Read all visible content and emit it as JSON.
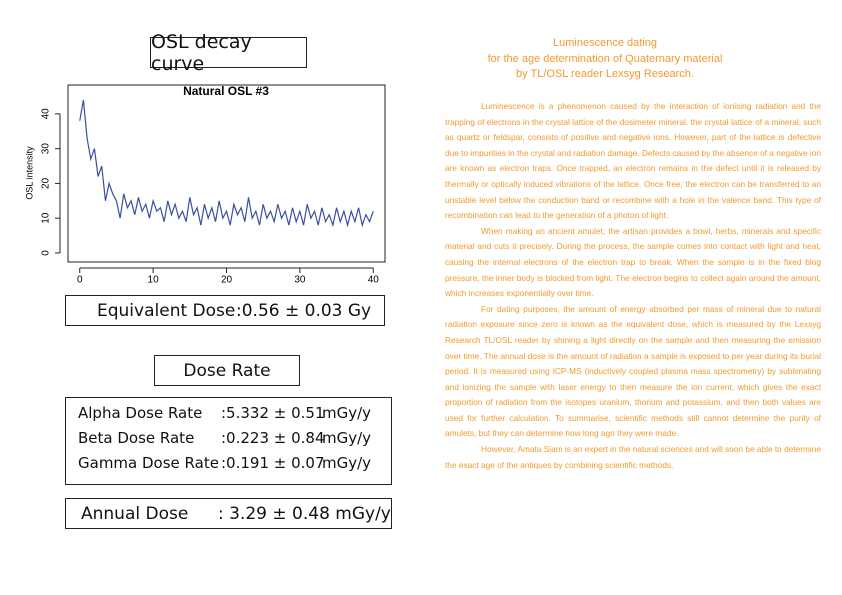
{
  "header": {
    "box_title": "OSL decay curve"
  },
  "chart_data": {
    "type": "line",
    "title": "Natural OSL #3",
    "y_label": "OSL intensity",
    "color": "#3a4fa0",
    "x": [
      0,
      0.5,
      1,
      1.5,
      2,
      2.5,
      3,
      3.5,
      4,
      4.5,
      5,
      5.5,
      6,
      6.5,
      7,
      7.5,
      8,
      8.5,
      9,
      9.5,
      10,
      10.5,
      11,
      11.5,
      12,
      12.5,
      13,
      13.5,
      14,
      14.5,
      15,
      15.5,
      16,
      16.5,
      17,
      17.5,
      18,
      18.5,
      19,
      19.5,
      20,
      20.5,
      21,
      21.5,
      22,
      22.5,
      23,
      23.5,
      24,
      24.5,
      25,
      25.5,
      26,
      26.5,
      27,
      27.5,
      28,
      28.5,
      29,
      29.5,
      30,
      30.5,
      31,
      31.5,
      32,
      32.5,
      33,
      33.5,
      34,
      34.5,
      35,
      35.5,
      36,
      36.5,
      37,
      37.5,
      38,
      38.5,
      39,
      39.5,
      40
    ],
    "values": [
      38,
      44,
      33,
      27,
      30,
      22,
      25,
      15,
      20,
      17,
      15,
      10,
      17,
      13,
      15,
      11,
      16,
      12,
      14,
      10,
      15,
      12,
      13,
      9,
      15,
      11,
      14,
      10,
      12,
      9,
      16,
      11,
      13,
      8,
      14,
      10,
      13,
      9,
      15,
      10,
      12,
      8,
      14,
      11,
      13,
      9,
      16,
      10,
      12,
      8,
      14,
      10,
      12,
      9,
      14,
      10,
      12,
      8,
      13,
      9,
      12,
      8,
      14,
      10,
      12,
      8,
      13,
      9,
      11,
      8,
      13,
      9,
      12,
      8,
      12,
      9,
      13,
      8,
      11,
      9,
      12
    ],
    "xlim": [
      -1.6,
      41.6
    ],
    "ylim": [
      -2.6,
      48.3
    ],
    "xticks": [
      0,
      10,
      20,
      30,
      40
    ],
    "yticks": [
      0,
      10,
      20,
      30,
      40
    ]
  },
  "equivalent_dose": {
    "label": "Equivalent Dose",
    "value": ":0.56 ± 0.03 Gy"
  },
  "dose_rate": {
    "title": "Dose Rate",
    "rows": [
      {
        "label": "Alpha Dose Rate",
        "value": ":5.332 ± 0.51",
        "unit": "mGy/y"
      },
      {
        "label": "Beta Dose Rate",
        "value": ":0.223 ± 0.84",
        "unit": "mGy/y"
      },
      {
        "label": "Gamma Dose Rate",
        "value": ":0.191 ± 0.07",
        "unit": "mGy/y"
      }
    ]
  },
  "annual_dose": {
    "label": "Annual Dose",
    "value": ": 3.29 ± 0.48 mGy/y"
  },
  "article": {
    "title": [
      "Luminescence dating",
      "for the age determination of Quaternary material",
      "by TL/OSL reader Lexsyg Research."
    ],
    "paragraphs": [
      "Luminescence is a phenomenon caused by the interaction of ionising radiation and the trapping of electrons in the crystal lattice of the dosimeter mineral. the crystal lattice of a mineral, such as quartz or feldspar, consists of positive and negative ions. However, part of the lattice is defective due to impurities in the crystal and radiation damage. Defects caused by the absence of a negative ion are known as electron traps. Once trapped, an electron remains in the defect until it is released by thermally or optically induced vibrations of the lattice. Once free, the electron can be transferred to an unstable level below the conduction band or recombine with a hole in the valence band. This type of recombination can lead to the generation of a photon of light.",
      "When making an ancient amulet, the artisan provides a bowl, herbs, minerals and specific material and cuts it precisely. During the process, the sample comes into contact with light and heat, causing the internal electrons of the electron trap to break. When the sample is in the fixed blog pressure, the inner body is blocked from light. The electron begins to collect again around the amount, which increases exponentially over time.",
      "For dating purposes, the amount of energy absorbed per mass of mineral due to natural radiation exposure since zero is known as the equivalent dose, which is measured by the Lexsyg Research TL/OSL reader by shining a light directly on the sample and then measuring the emission over time. The annual dose is the amount of radiation a sample is exposed to per year during its burial period. It is measured using ICP-MS (inductively coupled plasma mass spectrometry) by sublimating and ionizing the sample with laser energy to then measure the ion current, which gives the exact proportion of radiation from the isotopes uranium, thorium and potassium, and then both values are used for further calculation. To summarise, scientific methods still cannot determine the purity of amulets, but they can determine how long ago they were made.",
      "However, Amata Siam is an expert in the natural sciences and will soon be able to determine the exact age of the antiques by combining scientific methods."
    ]
  }
}
